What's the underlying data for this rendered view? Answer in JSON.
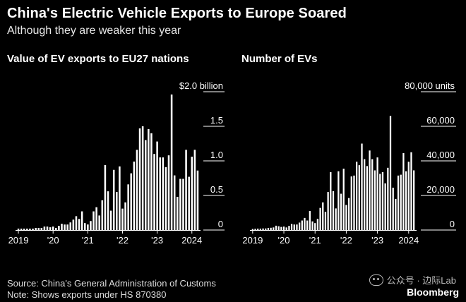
{
  "header": {
    "title": "China's Electric Vehicle Exports to Europe Soared",
    "subtitle": "Although they are weaker this year"
  },
  "footer": {
    "source": "Source: China's General Administration of Customs",
    "note": "Note: Shows exports under HS 870380"
  },
  "watermark": {
    "text": "公众号 · 边际Lab"
  },
  "brand": "Bloomberg",
  "colors": {
    "background": "#000000",
    "bar": "#ffffff",
    "axis": "#ffffff"
  },
  "chart_data": [
    {
      "type": "bar",
      "title": "Value of EV exports to EU27 nations",
      "unit_label": "$2.0 billion",
      "ylim": [
        0,
        2.0
      ],
      "yticks": [
        {
          "value": 2.0,
          "label": "$2.0 billion"
        },
        {
          "value": 1.5,
          "label": "1.5"
        },
        {
          "value": 1.0,
          "label": "1.0"
        },
        {
          "value": 0.5,
          "label": "0.5"
        },
        {
          "value": 0,
          "label": "0"
        }
      ],
      "xticks": [
        {
          "index": 0,
          "label": "2019"
        },
        {
          "index": 12,
          "label": "'20"
        },
        {
          "index": 24,
          "label": "'21"
        },
        {
          "index": 36,
          "label": "'22"
        },
        {
          "index": 48,
          "label": "'23"
        },
        {
          "index": 60,
          "label": "2024"
        }
      ],
      "x_start": "2019-01",
      "values": [
        0.02,
        0.02,
        0.02,
        0.02,
        0.02,
        0.02,
        0.03,
        0.03,
        0.03,
        0.05,
        0.05,
        0.04,
        0.05,
        0.03,
        0.06,
        0.09,
        0.08,
        0.08,
        0.11,
        0.15,
        0.2,
        0.16,
        0.27,
        0.1,
        0.08,
        0.13,
        0.27,
        0.33,
        0.21,
        0.43,
        0.94,
        0.56,
        0.28,
        0.87,
        0.55,
        0.92,
        0.31,
        0.4,
        0.66,
        0.82,
        0.99,
        1.16,
        1.47,
        1.5,
        1.3,
        1.46,
        1.4,
        1.1,
        1.28,
        1.05,
        1.05,
        0.91,
        1.08,
        1.96,
        0.79,
        0.48,
        0.74,
        0.74,
        1.16,
        0.77,
        1.06,
        1.16,
        0.86
      ]
    },
    {
      "type": "bar",
      "title": "Number of EVs",
      "unit_label": "80,000 units",
      "ylim": [
        0,
        80000
      ],
      "yticks": [
        {
          "value": 80000,
          "label": "80,000 units"
        },
        {
          "value": 60000,
          "label": "60,000"
        },
        {
          "value": 40000,
          "label": "40,000"
        },
        {
          "value": 20000,
          "label": "20,000"
        },
        {
          "value": 0,
          "label": "0"
        }
      ],
      "xticks": [
        {
          "index": 0,
          "label": "2019"
        },
        {
          "index": 12,
          "label": "'20"
        },
        {
          "index": 24,
          "label": "'21"
        },
        {
          "index": 36,
          "label": "'22"
        },
        {
          "index": 48,
          "label": "'23"
        },
        {
          "index": 60,
          "label": "2024"
        }
      ],
      "x_start": "2019-01",
      "values": [
        600,
        700,
        800,
        800,
        900,
        900,
        1200,
        1300,
        1500,
        2500,
        2200,
        1800,
        2000,
        1500,
        2400,
        3500,
        3200,
        3200,
        4300,
        5500,
        7000,
        5500,
        11000,
        5000,
        4000,
        6500,
        12800,
        16000,
        10500,
        22000,
        33500,
        22500,
        12500,
        34000,
        21000,
        35500,
        14500,
        18500,
        31000,
        31500,
        39500,
        37500,
        50000,
        41000,
        37000,
        46000,
        41000,
        34500,
        42000,
        32500,
        33500,
        27000,
        36000,
        66000,
        24500,
        18000,
        31500,
        32000,
        44500,
        34000,
        39500,
        45000,
        34500
      ]
    }
  ]
}
